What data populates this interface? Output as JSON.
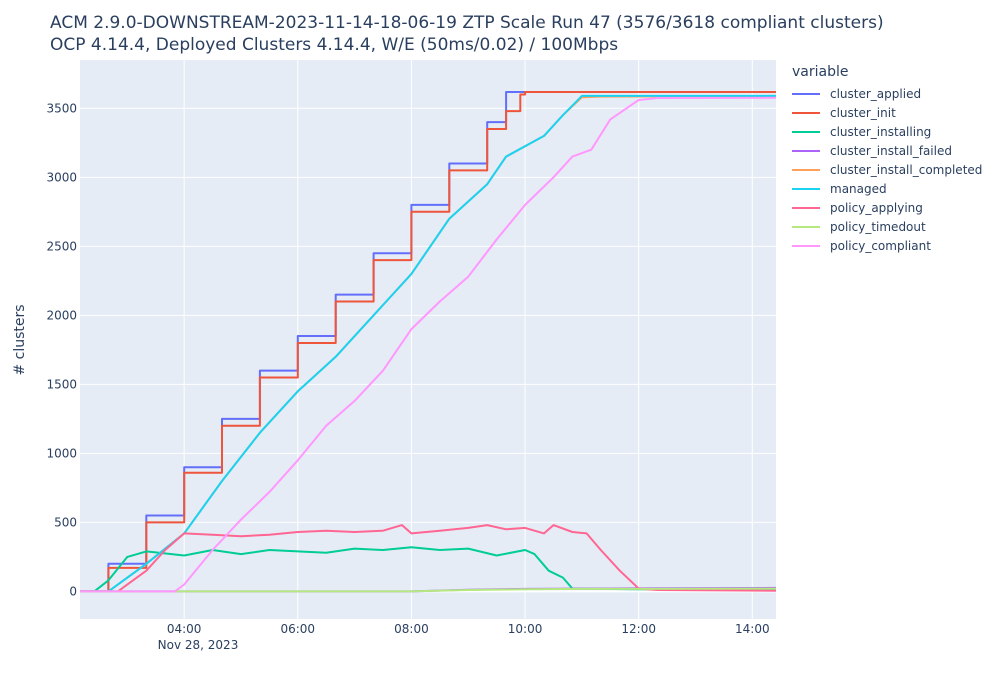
{
  "title_line1": "ACM 2.9.0-DOWNSTREAM-2023-11-14-18-06-19 ZTP Scale Run 47 (3576/3618 compliant clusters)",
  "title_line2": "OCP 4.14.4, Deployed Clusters 4.14.4, W/E (50ms/0.02) / 100Mbps",
  "legend_title": "variable",
  "chart_data": {
    "type": "line",
    "title": "ACM 2.9.0-DOWNSTREAM-2023-11-14-18-06-19 ZTP Scale Run 47 (3576/3618 compliant clusters)",
    "subtitle": "OCP 4.14.4, Deployed Clusters 4.14.4, W/E (50ms/0.02) / 100Mbps",
    "xlabel": "",
    "ylabel": "# clusters",
    "x_date_label": "Nov 28, 2023",
    "xlim": [
      "02:10",
      "14:25"
    ],
    "ylim": [
      -200,
      3850
    ],
    "x_ticks": [
      "04:00",
      "06:00",
      "08:00",
      "10:00",
      "12:00",
      "14:00"
    ],
    "y_ticks": [
      0,
      500,
      1000,
      1500,
      2000,
      2500,
      3000,
      3500
    ],
    "grid": true,
    "legend_position": "right",
    "series": [
      {
        "name": "cluster_applied",
        "color": "#636efa",
        "step": true,
        "points": [
          [
            "02:10",
            0
          ],
          [
            "02:40",
            200
          ],
          [
            "03:20",
            550
          ],
          [
            "04:00",
            900
          ],
          [
            "04:40",
            1250
          ],
          [
            "05:20",
            1600
          ],
          [
            "06:00",
            1850
          ],
          [
            "06:40",
            2150
          ],
          [
            "07:20",
            2450
          ],
          [
            "08:00",
            2800
          ],
          [
            "08:40",
            3100
          ],
          [
            "09:20",
            3400
          ],
          [
            "09:40",
            3618
          ],
          [
            "14:25",
            3618
          ]
        ]
      },
      {
        "name": "cluster_init",
        "color": "#ef553b",
        "step": true,
        "points": [
          [
            "02:10",
            0
          ],
          [
            "02:40",
            170
          ],
          [
            "03:20",
            500
          ],
          [
            "04:00",
            860
          ],
          [
            "04:40",
            1200
          ],
          [
            "05:20",
            1550
          ],
          [
            "06:00",
            1800
          ],
          [
            "06:40",
            2100
          ],
          [
            "07:20",
            2400
          ],
          [
            "08:00",
            2750
          ],
          [
            "08:40",
            3050
          ],
          [
            "09:20",
            3350
          ],
          [
            "09:40",
            3480
          ],
          [
            "09:55",
            3600
          ],
          [
            "10:00",
            3618
          ],
          [
            "14:25",
            3618
          ]
        ]
      },
      {
        "name": "cluster_installing",
        "color": "#00cc96",
        "points": [
          [
            "02:10",
            0
          ],
          [
            "02:25",
            0
          ],
          [
            "02:40",
            80
          ],
          [
            "03:00",
            250
          ],
          [
            "03:20",
            290
          ],
          [
            "04:00",
            260
          ],
          [
            "04:30",
            300
          ],
          [
            "05:00",
            270
          ],
          [
            "05:30",
            300
          ],
          [
            "06:00",
            290
          ],
          [
            "06:30",
            280
          ],
          [
            "07:00",
            310
          ],
          [
            "07:30",
            300
          ],
          [
            "08:00",
            320
          ],
          [
            "08:30",
            300
          ],
          [
            "09:00",
            310
          ],
          [
            "09:30",
            260
          ],
          [
            "10:00",
            300
          ],
          [
            "10:10",
            270
          ],
          [
            "10:25",
            150
          ],
          [
            "10:40",
            100
          ],
          [
            "10:50",
            20
          ],
          [
            "11:00",
            20
          ],
          [
            "12:00",
            15
          ],
          [
            "14:25",
            15
          ]
        ]
      },
      {
        "name": "cluster_install_failed",
        "color": "#ab63fa",
        "points": [
          [
            "02:10",
            0
          ],
          [
            "08:00",
            0
          ],
          [
            "09:00",
            12
          ],
          [
            "10:00",
            18
          ],
          [
            "11:00",
            20
          ],
          [
            "14:25",
            25
          ]
        ]
      },
      {
        "name": "cluster_install_completed",
        "color": "#ffa15a",
        "points": [
          [
            "02:10",
            0
          ],
          [
            "02:40",
            0
          ],
          [
            "03:20",
            200
          ],
          [
            "04:00",
            420
          ],
          [
            "04:40",
            800
          ],
          [
            "05:20",
            1150
          ],
          [
            "06:00",
            1450
          ],
          [
            "06:40",
            1700
          ],
          [
            "07:20",
            2000
          ],
          [
            "08:00",
            2300
          ],
          [
            "08:40",
            2700
          ],
          [
            "09:20",
            2950
          ],
          [
            "09:40",
            3150
          ],
          [
            "10:20",
            3300
          ],
          [
            "10:40",
            3450
          ],
          [
            "11:00",
            3580
          ],
          [
            "11:20",
            3585
          ],
          [
            "14:25",
            3590
          ]
        ]
      },
      {
        "name": "managed",
        "color": "#19d3f3",
        "points": [
          [
            "02:10",
            0
          ],
          [
            "02:40",
            0
          ],
          [
            "03:20",
            200
          ],
          [
            "04:00",
            420
          ],
          [
            "04:40",
            800
          ],
          [
            "05:20",
            1150
          ],
          [
            "06:00",
            1450
          ],
          [
            "06:40",
            1700
          ],
          [
            "07:20",
            2000
          ],
          [
            "08:00",
            2300
          ],
          [
            "08:40",
            2700
          ],
          [
            "09:20",
            2950
          ],
          [
            "09:40",
            3150
          ],
          [
            "10:20",
            3300
          ],
          [
            "10:40",
            3450
          ],
          [
            "11:00",
            3590
          ],
          [
            "11:20",
            3590
          ],
          [
            "14:25",
            3590
          ]
        ]
      },
      {
        "name": "policy_applying",
        "color": "#ff6692",
        "points": [
          [
            "02:10",
            0
          ],
          [
            "02:50",
            0
          ],
          [
            "03:20",
            150
          ],
          [
            "03:40",
            300
          ],
          [
            "04:00",
            420
          ],
          [
            "04:30",
            410
          ],
          [
            "05:00",
            400
          ],
          [
            "05:30",
            410
          ],
          [
            "06:00",
            430
          ],
          [
            "06:30",
            440
          ],
          [
            "07:00",
            430
          ],
          [
            "07:30",
            440
          ],
          [
            "07:50",
            480
          ],
          [
            "08:00",
            420
          ],
          [
            "08:30",
            440
          ],
          [
            "09:00",
            460
          ],
          [
            "09:20",
            480
          ],
          [
            "09:40",
            450
          ],
          [
            "10:00",
            460
          ],
          [
            "10:20",
            420
          ],
          [
            "10:30",
            480
          ],
          [
            "10:50",
            430
          ],
          [
            "11:05",
            420
          ],
          [
            "11:20",
            300
          ],
          [
            "11:40",
            150
          ],
          [
            "12:00",
            20
          ],
          [
            "12:20",
            10
          ],
          [
            "14:25",
            5
          ]
        ]
      },
      {
        "name": "policy_timedout",
        "color": "#b6e880",
        "points": [
          [
            "02:10",
            0
          ],
          [
            "08:00",
            0
          ],
          [
            "09:00",
            10
          ],
          [
            "10:00",
            15
          ],
          [
            "11:00",
            18
          ],
          [
            "14:25",
            20
          ]
        ]
      },
      {
        "name": "policy_compliant",
        "color": "#ff97ff",
        "points": [
          [
            "02:10",
            0
          ],
          [
            "03:50",
            0
          ],
          [
            "04:00",
            50
          ],
          [
            "04:30",
            300
          ],
          [
            "05:00",
            520
          ],
          [
            "05:30",
            720
          ],
          [
            "06:00",
            950
          ],
          [
            "06:30",
            1200
          ],
          [
            "07:00",
            1380
          ],
          [
            "07:30",
            1600
          ],
          [
            "08:00",
            1900
          ],
          [
            "08:30",
            2100
          ],
          [
            "09:00",
            2280
          ],
          [
            "09:30",
            2550
          ],
          [
            "10:00",
            2800
          ],
          [
            "10:30",
            3000
          ],
          [
            "10:50",
            3150
          ],
          [
            "11:10",
            3200
          ],
          [
            "11:30",
            3420
          ],
          [
            "12:00",
            3560
          ],
          [
            "12:20",
            3575
          ],
          [
            "14:25",
            3576
          ]
        ]
      }
    ]
  }
}
